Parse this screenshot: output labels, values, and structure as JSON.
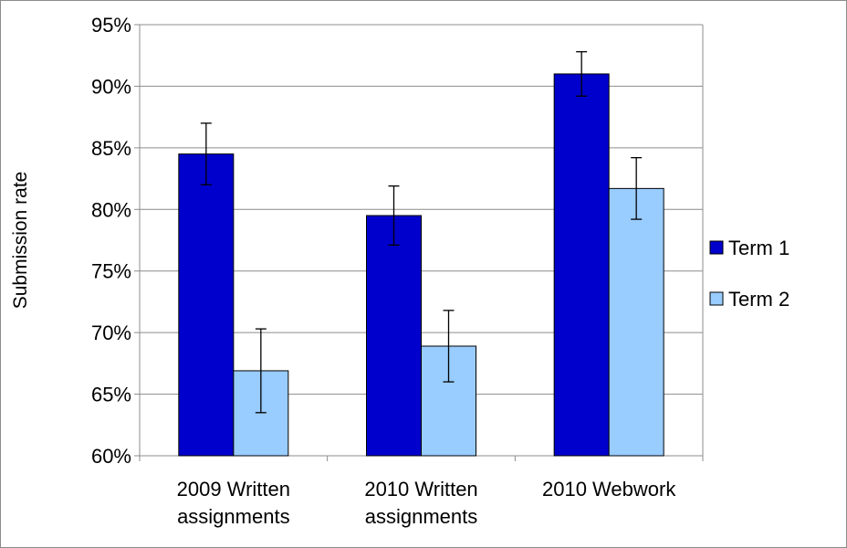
{
  "chart_data": {
    "type": "bar",
    "ylabel": "Submission rate",
    "ylim": [
      0.6,
      0.95
    ],
    "yticks": [
      0.6,
      0.65,
      0.7,
      0.75,
      0.8,
      0.85,
      0.9,
      0.95
    ],
    "ytick_labels": [
      "60%",
      "65%",
      "70%",
      "75%",
      "80%",
      "85%",
      "90%",
      "95%"
    ],
    "grid": true,
    "legend_position": "right",
    "categories": [
      [
        "2009 Written",
        "assignments"
      ],
      [
        "2010 Written",
        "assignments"
      ],
      [
        "2010 Webwork"
      ]
    ],
    "series": [
      {
        "name": "Term 1",
        "color": "#0000cc",
        "values": [
          0.845,
          0.795,
          0.91
        ],
        "errors": [
          0.025,
          0.024,
          0.018
        ]
      },
      {
        "name": "Term 2",
        "color": "#99ccff",
        "values": [
          0.669,
          0.689,
          0.817
        ],
        "errors": [
          0.034,
          0.029,
          0.025
        ]
      }
    ]
  }
}
